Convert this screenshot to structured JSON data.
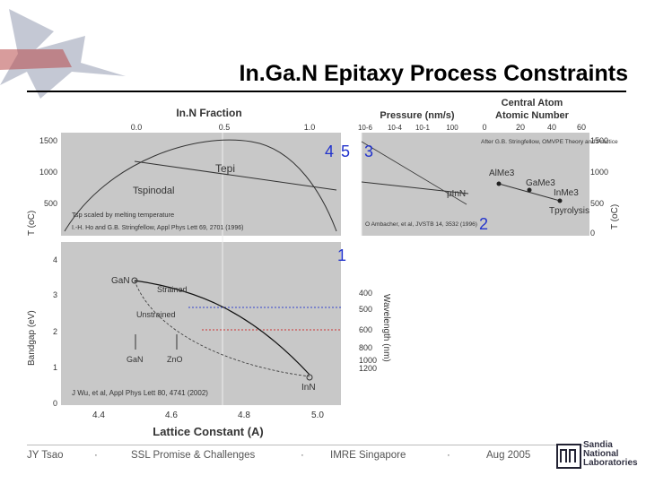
{
  "slide": {
    "title": "In.Ga.N Epitaxy Process Constraints",
    "footer": {
      "author": "JY Tsao",
      "talk": "SSL Promise & Challenges",
      "venue": "IMRE Singapore",
      "date": "Aug 2005",
      "separator": "·",
      "org_lines": [
        "Sandia",
        "National",
        "Laboratories"
      ]
    },
    "colors": {
      "panel": "#c8c8c8",
      "accent": "#2233cc",
      "title": "#000000"
    }
  },
  "chart_data": [
    {
      "type": "line",
      "panel": "temperature-vs-inn-fraction",
      "title": "In.N Fraction",
      "xlabel": "",
      "top_axis_ticks": [
        "0.0",
        "0.5",
        "1.0"
      ],
      "ylabel": "T (oC)",
      "ylim": [
        0,
        1500
      ],
      "yticks": [
        "1500",
        "1000",
        "500"
      ],
      "curves": [
        {
          "label": "Tepi",
          "x": [
            0.0,
            0.5,
            1.0
          ],
          "y": [
            900,
            850,
            750
          ]
        },
        {
          "label": "Tspinodal",
          "x": [
            0.0,
            0.15,
            0.3,
            0.5,
            0.7,
            0.85,
            1.0
          ],
          "y": [
            80,
            700,
            1050,
            1200,
            1000,
            600,
            80
          ]
        }
      ],
      "labels": {
        "tepi": "Tepi",
        "tspinodal": "Tspinodal"
      },
      "annotations": [
        "Tsp scaled by melting temperature",
        "I.-H. Ho and G.B. Stringfellow, Appl Phys Lett 69, 2701 (1996)"
      ],
      "markers": [
        "4",
        "5"
      ]
    },
    {
      "type": "line",
      "panel": "temperature-vs-pressure",
      "title": "Pressure (nm/s)",
      "top_axis_ticks": [
        "10-6",
        "10-4",
        "10-1",
        "100"
      ],
      "curves": [
        {
          "label": "pInN",
          "x": [
            -6,
            0
          ],
          "y": [
            250,
            950
          ]
        }
      ],
      "labels": {
        "pinn": "pInN"
      },
      "annotations": [
        "O Ambacher, et al, JVSTB 14, 3532 (1996)"
      ],
      "markers": [
        "3",
        "2"
      ]
    },
    {
      "type": "scatter",
      "panel": "pyrolysis-vs-central-atom",
      "title": "Central Atom",
      "subtitle": "Atomic Number",
      "top_axis_ticks": [
        "0",
        "20",
        "40",
        "60"
      ],
      "ylabel": "T (oC)",
      "yticks": [
        "1500",
        "1000",
        "500",
        "0"
      ],
      "x": [
        13,
        31,
        49
      ],
      "y": [
        850,
        750,
        570
      ],
      "point_labels": [
        "AlMe3",
        "GaMe3",
        "InMe3"
      ],
      "labels": {
        "tpyrolysis": "Tpyrolysis"
      },
      "annotations": [
        "After G.B. Stringfellow, OMVPE Theory and Practice"
      ]
    },
    {
      "type": "line",
      "panel": "bandgap-vs-lattice-constant",
      "xlabel": "Lattice Constant (A)",
      "xlim": [
        4.3,
        5.05
      ],
      "xticks": [
        "4.4",
        "4.6",
        "4.8",
        "5.0"
      ],
      "ylabel": "Bandgap (eV)",
      "ylim": [
        0,
        4.5
      ],
      "yticks": [
        "0",
        "1",
        "2",
        "3",
        "4"
      ],
      "right_axis_label": "Wavelength (nm)",
      "right_axis_ticks": [
        "400",
        "500",
        "600",
        "800",
        "1000",
        "1200"
      ],
      "series": [
        {
          "name": "Strained",
          "x": [
            4.49,
            4.6,
            4.75,
            4.9,
            4.98
          ],
          "y": [
            3.4,
            3.05,
            2.65,
            2.2,
            1.95
          ]
        },
        {
          "name": "Unstrained",
          "x": [
            4.49,
            4.6,
            4.8,
            4.95,
            5.0
          ],
          "y": [
            3.4,
            2.55,
            1.55,
            0.9,
            0.7
          ]
        }
      ],
      "points": [
        {
          "label": "GaN",
          "x": 4.49,
          "y": 3.4
        },
        {
          "label": "InN",
          "x": 4.98,
          "y": 0.7
        }
      ],
      "tick_labels": [
        "GaN",
        "ZnO"
      ],
      "annotations": [
        "J Wu, et al, Appl Phys Lett 80, 4741 (2002)"
      ],
      "markers": [
        "1"
      ]
    }
  ]
}
